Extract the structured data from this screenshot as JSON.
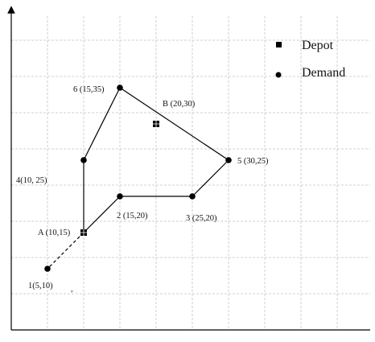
{
  "legend": {
    "depot_label": "Depot",
    "demand_label": "Demand"
  },
  "depots": [
    {
      "id": "A",
      "label": "A (10,15)",
      "x": 10,
      "y": 15
    },
    {
      "id": "B",
      "label": "B (20,30)",
      "x": 20,
      "y": 30
    }
  ],
  "demand_nodes": [
    {
      "id": "1",
      "label": "1(5,10)",
      "x": 5,
      "y": 10
    },
    {
      "id": "2",
      "label": "2 (15,20)",
      "x": 15,
      "y": 20
    },
    {
      "id": "3",
      "label": "3 (25,20)",
      "x": 25,
      "y": 20
    },
    {
      "id": "4",
      "label": "4(10, 25)",
      "x": 10,
      "y": 25
    },
    {
      "id": "5",
      "label": "5 (30,25)",
      "x": 30,
      "y": 25
    },
    {
      "id": "6",
      "label": "6 (15,35)",
      "x": 15,
      "y": 35
    }
  ],
  "routes": [
    {
      "from": "A",
      "to": "2",
      "style": "solid"
    },
    {
      "from": "2",
      "to": "3",
      "style": "solid"
    },
    {
      "from": "3",
      "to": "5",
      "style": "solid"
    },
    {
      "from": "5",
      "to": "6",
      "style": "solid"
    },
    {
      "from": "6",
      "to": "4",
      "style": "solid"
    },
    {
      "from": "4",
      "to": "A",
      "style": "solid"
    },
    {
      "from": "A",
      "to": "1",
      "style": "dashed"
    }
  ],
  "stray_mark": ","
}
